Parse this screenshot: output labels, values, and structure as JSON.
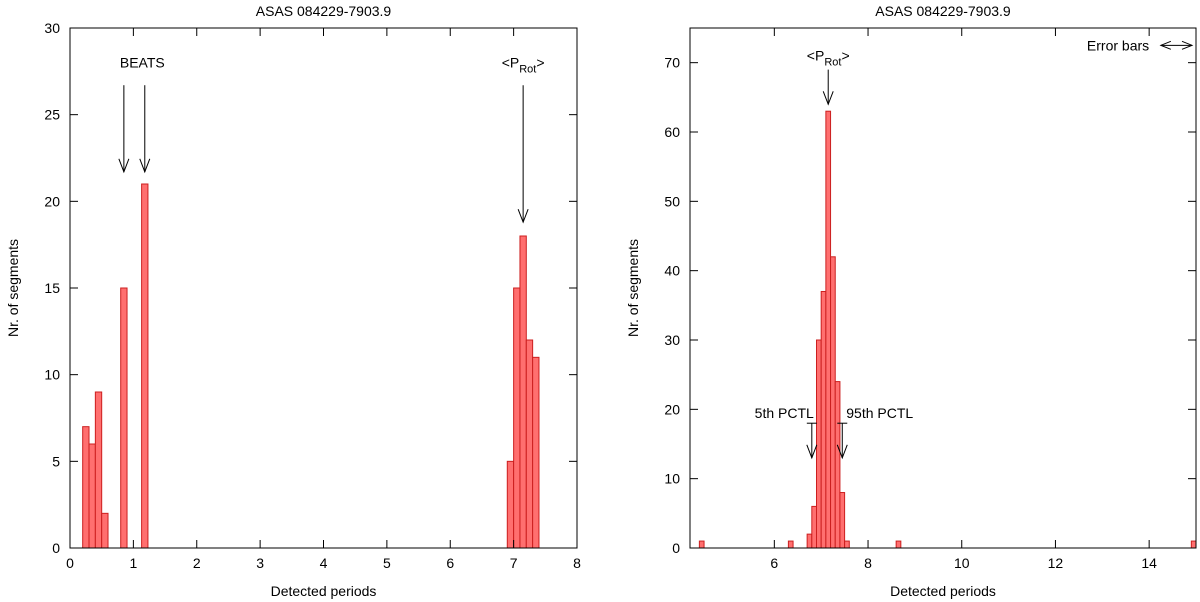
{
  "chart_data": [
    {
      "type": "bar",
      "title": "ASAS 084229-7903.9",
      "xlabel": "Detected periods",
      "ylabel": "Nr. of segments",
      "xlim": [
        0,
        8
      ],
      "ylim": [
        0,
        30
      ],
      "xticks": [
        0,
        1,
        2,
        3,
        4,
        5,
        6,
        7,
        8
      ],
      "yticks": [
        0,
        5,
        10,
        15,
        20,
        25,
        30
      ],
      "bin_width": 0.1,
      "bars": [
        {
          "x": 0.25,
          "value": 7
        },
        {
          "x": 0.35,
          "value": 6
        },
        {
          "x": 0.45,
          "value": 9
        },
        {
          "x": 0.55,
          "value": 2
        },
        {
          "x": 0.85,
          "value": 15
        },
        {
          "x": 1.18,
          "value": 21
        },
        {
          "x": 6.95,
          "value": 5
        },
        {
          "x": 7.05,
          "value": 15
        },
        {
          "x": 7.15,
          "value": 18
        },
        {
          "x": 7.25,
          "value": 12
        },
        {
          "x": 7.35,
          "value": 11
        }
      ],
      "annotations": [
        {
          "label": "BEATS",
          "x": 0.85,
          "y": 28,
          "arrows_x": [
            0.85,
            1.18
          ],
          "arrow_from": 26.7,
          "arrow_to": 21.7
        },
        {
          "label_main": "<P",
          "label_sub": "Rot",
          "label_end": ">",
          "x": 7.15,
          "y": 28,
          "arrows_x": [
            7.15
          ],
          "arrow_from": 26.7,
          "arrow_to": 18.8
        }
      ]
    },
    {
      "type": "bar",
      "title": "ASAS 084229-7903.9",
      "xlabel": "Detected periods",
      "ylabel": "Nr. of segments",
      "xlim": [
        4.2,
        15
      ],
      "ylim": [
        0,
        75
      ],
      "xticks": [
        6,
        8,
        10,
        12,
        14
      ],
      "yticks": [
        0,
        10,
        20,
        30,
        40,
        50,
        60,
        70
      ],
      "bin_width": 0.1,
      "bars": [
        {
          "x": 4.45,
          "value": 1
        },
        {
          "x": 6.35,
          "value": 1
        },
        {
          "x": 6.75,
          "value": 2
        },
        {
          "x": 6.85,
          "value": 6
        },
        {
          "x": 6.95,
          "value": 30
        },
        {
          "x": 7.05,
          "value": 37
        },
        {
          "x": 7.15,
          "value": 63
        },
        {
          "x": 7.25,
          "value": 42
        },
        {
          "x": 7.35,
          "value": 24
        },
        {
          "x": 7.45,
          "value": 8
        },
        {
          "x": 7.55,
          "value": 1
        },
        {
          "x": 8.65,
          "value": 1
        },
        {
          "x": 14.95,
          "value": 1
        }
      ],
      "annotations": [
        {
          "label_main": "<P",
          "label_sub": "Rot",
          "label_end": ">",
          "x": 7.15,
          "y": 71,
          "arrows_x": [
            7.15
          ],
          "arrow_from": 69,
          "arrow_to": 64
        },
        {
          "label": "5th PCTL",
          "x": 6.8,
          "y": 19.5,
          "marker_x": 6.8,
          "marker_from": 18,
          "marker_to": 13
        },
        {
          "label": "95th PCTL",
          "x": 7.45,
          "y": 19.5,
          "marker_x": 7.45,
          "marker_from": 18,
          "marker_to": 13
        },
        {
          "label": "Error bars",
          "x": 14.0,
          "y": 72.5,
          "arrow_x1": 14.25,
          "arrow_x2": 15.0
        }
      ]
    }
  ]
}
